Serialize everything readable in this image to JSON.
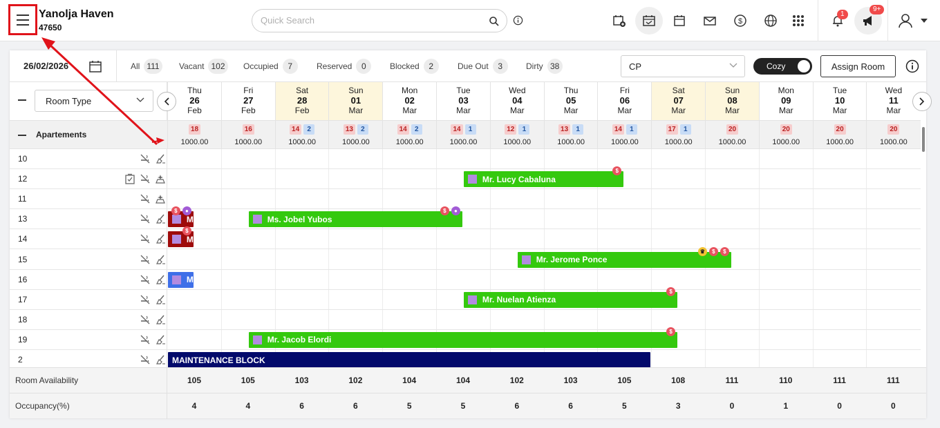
{
  "header": {
    "hotel_name": "Yanolja Haven",
    "hotel_id": "47650",
    "search_placeholder": "Quick Search",
    "notif_badge": "1",
    "announce_badge": "9+"
  },
  "filters": {
    "date": "26/02/2026",
    "items": [
      {
        "label": "All",
        "count": "111"
      },
      {
        "label": "Vacant",
        "count": "102"
      },
      {
        "label": "Occupied",
        "count": "7"
      },
      {
        "label": "Reserved",
        "count": "0"
      },
      {
        "label": "Blocked",
        "count": "2"
      },
      {
        "label": "Due Out",
        "count": "3"
      },
      {
        "label": "Dirty",
        "count": "38"
      }
    ],
    "rate_plan": "CP",
    "view_toggle": "Cozy",
    "assign_label": "Assign Room"
  },
  "grid": {
    "room_type_label": "Room Type",
    "group_label": "Apartements",
    "days": [
      {
        "dn": "Thu",
        "dd": "26",
        "dm": "Feb",
        "weekend": false,
        "red": "18",
        "blue": "",
        "rate": "1000.00"
      },
      {
        "dn": "Fri",
        "dd": "27",
        "dm": "Feb",
        "weekend": false,
        "red": "16",
        "blue": "",
        "rate": "1000.00"
      },
      {
        "dn": "Sat",
        "dd": "28",
        "dm": "Feb",
        "weekend": true,
        "red": "14",
        "blue": "2",
        "rate": "1000.00"
      },
      {
        "dn": "Sun",
        "dd": "01",
        "dm": "Mar",
        "weekend": true,
        "red": "13",
        "blue": "2",
        "rate": "1000.00"
      },
      {
        "dn": "Mon",
        "dd": "02",
        "dm": "Mar",
        "weekend": false,
        "red": "14",
        "blue": "2",
        "rate": "1000.00"
      },
      {
        "dn": "Tue",
        "dd": "03",
        "dm": "Mar",
        "weekend": false,
        "red": "14",
        "blue": "1",
        "rate": "1000.00"
      },
      {
        "dn": "Wed",
        "dd": "04",
        "dm": "Mar",
        "weekend": false,
        "red": "12",
        "blue": "1",
        "rate": "1000.00"
      },
      {
        "dn": "Thu",
        "dd": "05",
        "dm": "Mar",
        "weekend": false,
        "red": "13",
        "blue": "1",
        "rate": "1000.00"
      },
      {
        "dn": "Fri",
        "dd": "06",
        "dm": "Mar",
        "weekend": false,
        "red": "14",
        "blue": "1",
        "rate": "1000.00"
      },
      {
        "dn": "Sat",
        "dd": "07",
        "dm": "Mar",
        "weekend": true,
        "red": "17",
        "blue": "1",
        "rate": "1000.00"
      },
      {
        "dn": "Sun",
        "dd": "08",
        "dm": "Mar",
        "weekend": true,
        "red": "20",
        "blue": "",
        "rate": "1000.00"
      },
      {
        "dn": "Mon",
        "dd": "09",
        "dm": "Mar",
        "weekend": false,
        "red": "20",
        "blue": "",
        "rate": "1000.00"
      },
      {
        "dn": "Tue",
        "dd": "10",
        "dm": "Mar",
        "weekend": false,
        "red": "20",
        "blue": "",
        "rate": "1000.00"
      },
      {
        "dn": "Wed",
        "dd": "11",
        "dm": "Mar",
        "weekend": false,
        "red": "20",
        "blue": "",
        "rate": "1000.00"
      }
    ],
    "rooms": [
      {
        "num": "10",
        "icons": [
          "no-smoking-icon",
          "broom-icon"
        ]
      },
      {
        "num": "12",
        "icons": [
          "checklist-icon",
          "no-smoking-icon",
          "sparkle-clean-icon"
        ]
      },
      {
        "num": "11",
        "icons": [
          "no-smoking-icon",
          "sparkle-clean-icon"
        ]
      },
      {
        "num": "13",
        "icons": [
          "no-smoking-icon",
          "broom-icon"
        ]
      },
      {
        "num": "14",
        "icons": [
          "no-smoking-icon",
          "broom-icon"
        ]
      },
      {
        "num": "15",
        "icons": [
          "no-smoking-icon",
          "broom-icon"
        ]
      },
      {
        "num": "16",
        "icons": [
          "no-smoking-icon",
          "broom-icon"
        ]
      },
      {
        "num": "17",
        "icons": [
          "no-smoking-icon",
          "broom-icon"
        ]
      },
      {
        "num": "18",
        "icons": [
          "no-smoking-icon",
          "broom-icon"
        ]
      },
      {
        "num": "19",
        "icons": [
          "no-smoking-icon",
          "broom-icon"
        ]
      },
      {
        "num": "2",
        "icons": [
          "no-smoking-icon",
          "broom-icon"
        ]
      }
    ],
    "bookings": [
      {
        "guest": "Mr. Lucy Cabaluna",
        "row": 1,
        "start": 5.5,
        "span": 3,
        "style": "green",
        "tags": [
          "s"
        ]
      },
      {
        "guest": "M",
        "row": 3,
        "start": 0,
        "span": 0.5,
        "style": "dark",
        "tags": [
          "s",
          "p"
        ]
      },
      {
        "guest": "Ms. Jobel Yubos",
        "row": 3,
        "start": 1.5,
        "span": 4,
        "style": "green",
        "tags": [
          "s",
          "p"
        ]
      },
      {
        "guest": "M",
        "row": 4,
        "start": 0,
        "span": 0.5,
        "style": "dark",
        "tags": [
          "s"
        ]
      },
      {
        "guest": "Mr. Jerome Ponce",
        "row": 5,
        "start": 6.5,
        "span": 4,
        "style": "green",
        "tags": [
          "k",
          "s",
          "s"
        ]
      },
      {
        "guest": "M",
        "row": 6,
        "start": 0,
        "span": 0.5,
        "style": "blue",
        "tags": []
      },
      {
        "guest": "Mr. Nuelan Atienza",
        "row": 7,
        "start": 5.5,
        "span": 4,
        "style": "green",
        "tags": [
          "s"
        ]
      },
      {
        "guest": "Mr. Jacob Elordi",
        "row": 9,
        "start": 1.5,
        "span": 8,
        "style": "green",
        "tags": [
          "s"
        ]
      },
      {
        "guest": "MAINTENANCE BLOCK",
        "row": 10,
        "start": 0,
        "span": 9,
        "style": "navy",
        "tags": []
      }
    ],
    "footer": {
      "availability_label": "Room Availability",
      "availability": [
        "105",
        "105",
        "103",
        "102",
        "104",
        "104",
        "102",
        "103",
        "105",
        "108",
        "111",
        "110",
        "111",
        "111"
      ],
      "occupancy_label": "Occupancy(%)",
      "occupancy": [
        "4",
        "4",
        "6",
        "6",
        "5",
        "5",
        "6",
        "6",
        "5",
        "3",
        "0",
        "1",
        "0",
        "0"
      ]
    }
  }
}
